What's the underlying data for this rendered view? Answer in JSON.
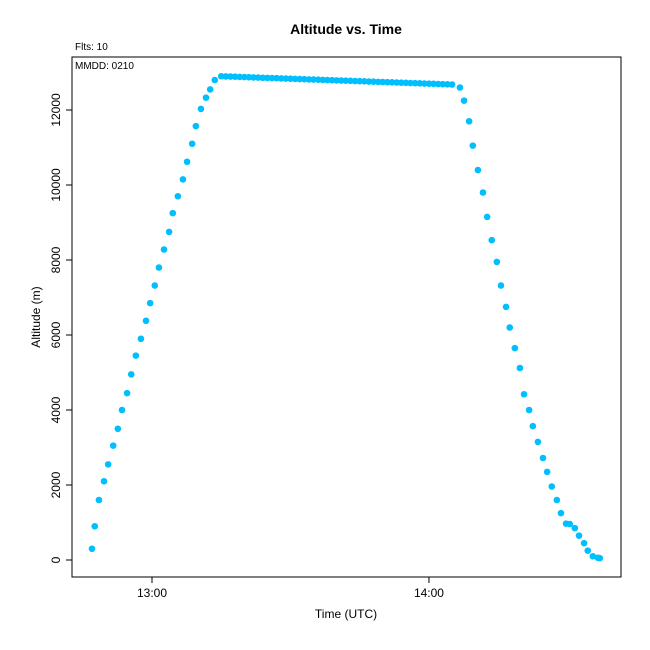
{
  "chart_data": {
    "type": "scatter",
    "title": "Altitude  vs. Time",
    "subtitle": "Flts: 10",
    "annotation": "MMDD: 0210",
    "x_label": "Time (UTC)",
    "y_label": "Altitude (m)",
    "color": "#00bfff",
    "x": [
      767,
      767.6,
      768.5,
      769.6,
      770.5,
      771.6,
      772.6,
      773.5,
      774.6,
      775.5,
      776.5,
      777.6,
      778.7,
      779.6,
      780.6,
      781.5,
      782.6,
      783.7,
      784.5,
      785.6,
      786.7,
      787.6,
      788.7,
      789.5,
      790.6,
      791.7,
      792.6,
      793.6,
      795,
      796,
      797,
      798,
      799,
      800,
      801,
      802,
      803,
      804,
      805,
      806,
      807,
      808,
      809,
      810,
      811,
      812,
      813,
      814,
      815,
      816,
      817,
      818,
      819,
      820,
      821,
      822,
      823,
      824,
      825,
      826,
      827,
      828,
      829,
      830,
      831,
      832,
      833,
      834,
      835,
      836,
      837,
      838,
      839,
      840,
      841,
      842,
      843,
      844,
      845,
      846.7,
      847.6,
      848.7,
      849.5,
      850.6,
      851.7,
      852.6,
      853.6,
      854.7,
      855.6,
      856.7,
      857.5,
      858.6,
      859.7,
      860.6,
      861.7,
      862.5,
      863.6,
      864.7,
      865.6,
      866.6,
      867.7,
      868.6,
      869.7,
      870.5,
      871.6,
      872.5,
      873.6,
      874.4,
      875.5,
      876.6,
      877
    ],
    "values": [
      300,
      900,
      1600,
      2100,
      2550,
      3050,
      3500,
      4000,
      4450,
      4950,
      5450,
      5900,
      6380,
      6850,
      7320,
      7800,
      8280,
      8750,
      9250,
      9700,
      10150,
      10620,
      11100,
      11570,
      12030,
      12330,
      12550,
      12800,
      12900,
      12896,
      12891,
      12887,
      12882,
      12878,
      12874,
      12869,
      12865,
      12860,
      12856,
      12852,
      12847,
      12843,
      12838,
      12834,
      12830,
      12825,
      12821,
      12816,
      12812,
      12808,
      12803,
      12799,
      12794,
      12790,
      12786,
      12781,
      12777,
      12772,
      12768,
      12764,
      12759,
      12755,
      12750,
      12746,
      12742,
      12737,
      12733,
      12728,
      12724,
      12720,
      12715,
      12711,
      12706,
      12702,
      12698,
      12693,
      12689,
      12684,
      12680,
      12600,
      12250,
      11700,
      11050,
      10400,
      9800,
      9150,
      8530,
      7950,
      7320,
      6750,
      6200,
      5650,
      5120,
      4420,
      4000,
      3570,
      3150,
      2720,
      2350,
      1960,
      1600,
      1250,
      970,
      960,
      850,
      650,
      450,
      250,
      100,
      60,
      50
    ],
    "xlim": [
      762.67,
      881.6
    ],
    "xticks": [
      {
        "value": 780,
        "label": "13:00"
      },
      {
        "value": 840,
        "label": "14:00"
      }
    ],
    "ylim": [
      -453,
      13413
    ],
    "yticks": [
      0,
      2000,
      4000,
      6000,
      8000,
      10000,
      12000
    ]
  }
}
